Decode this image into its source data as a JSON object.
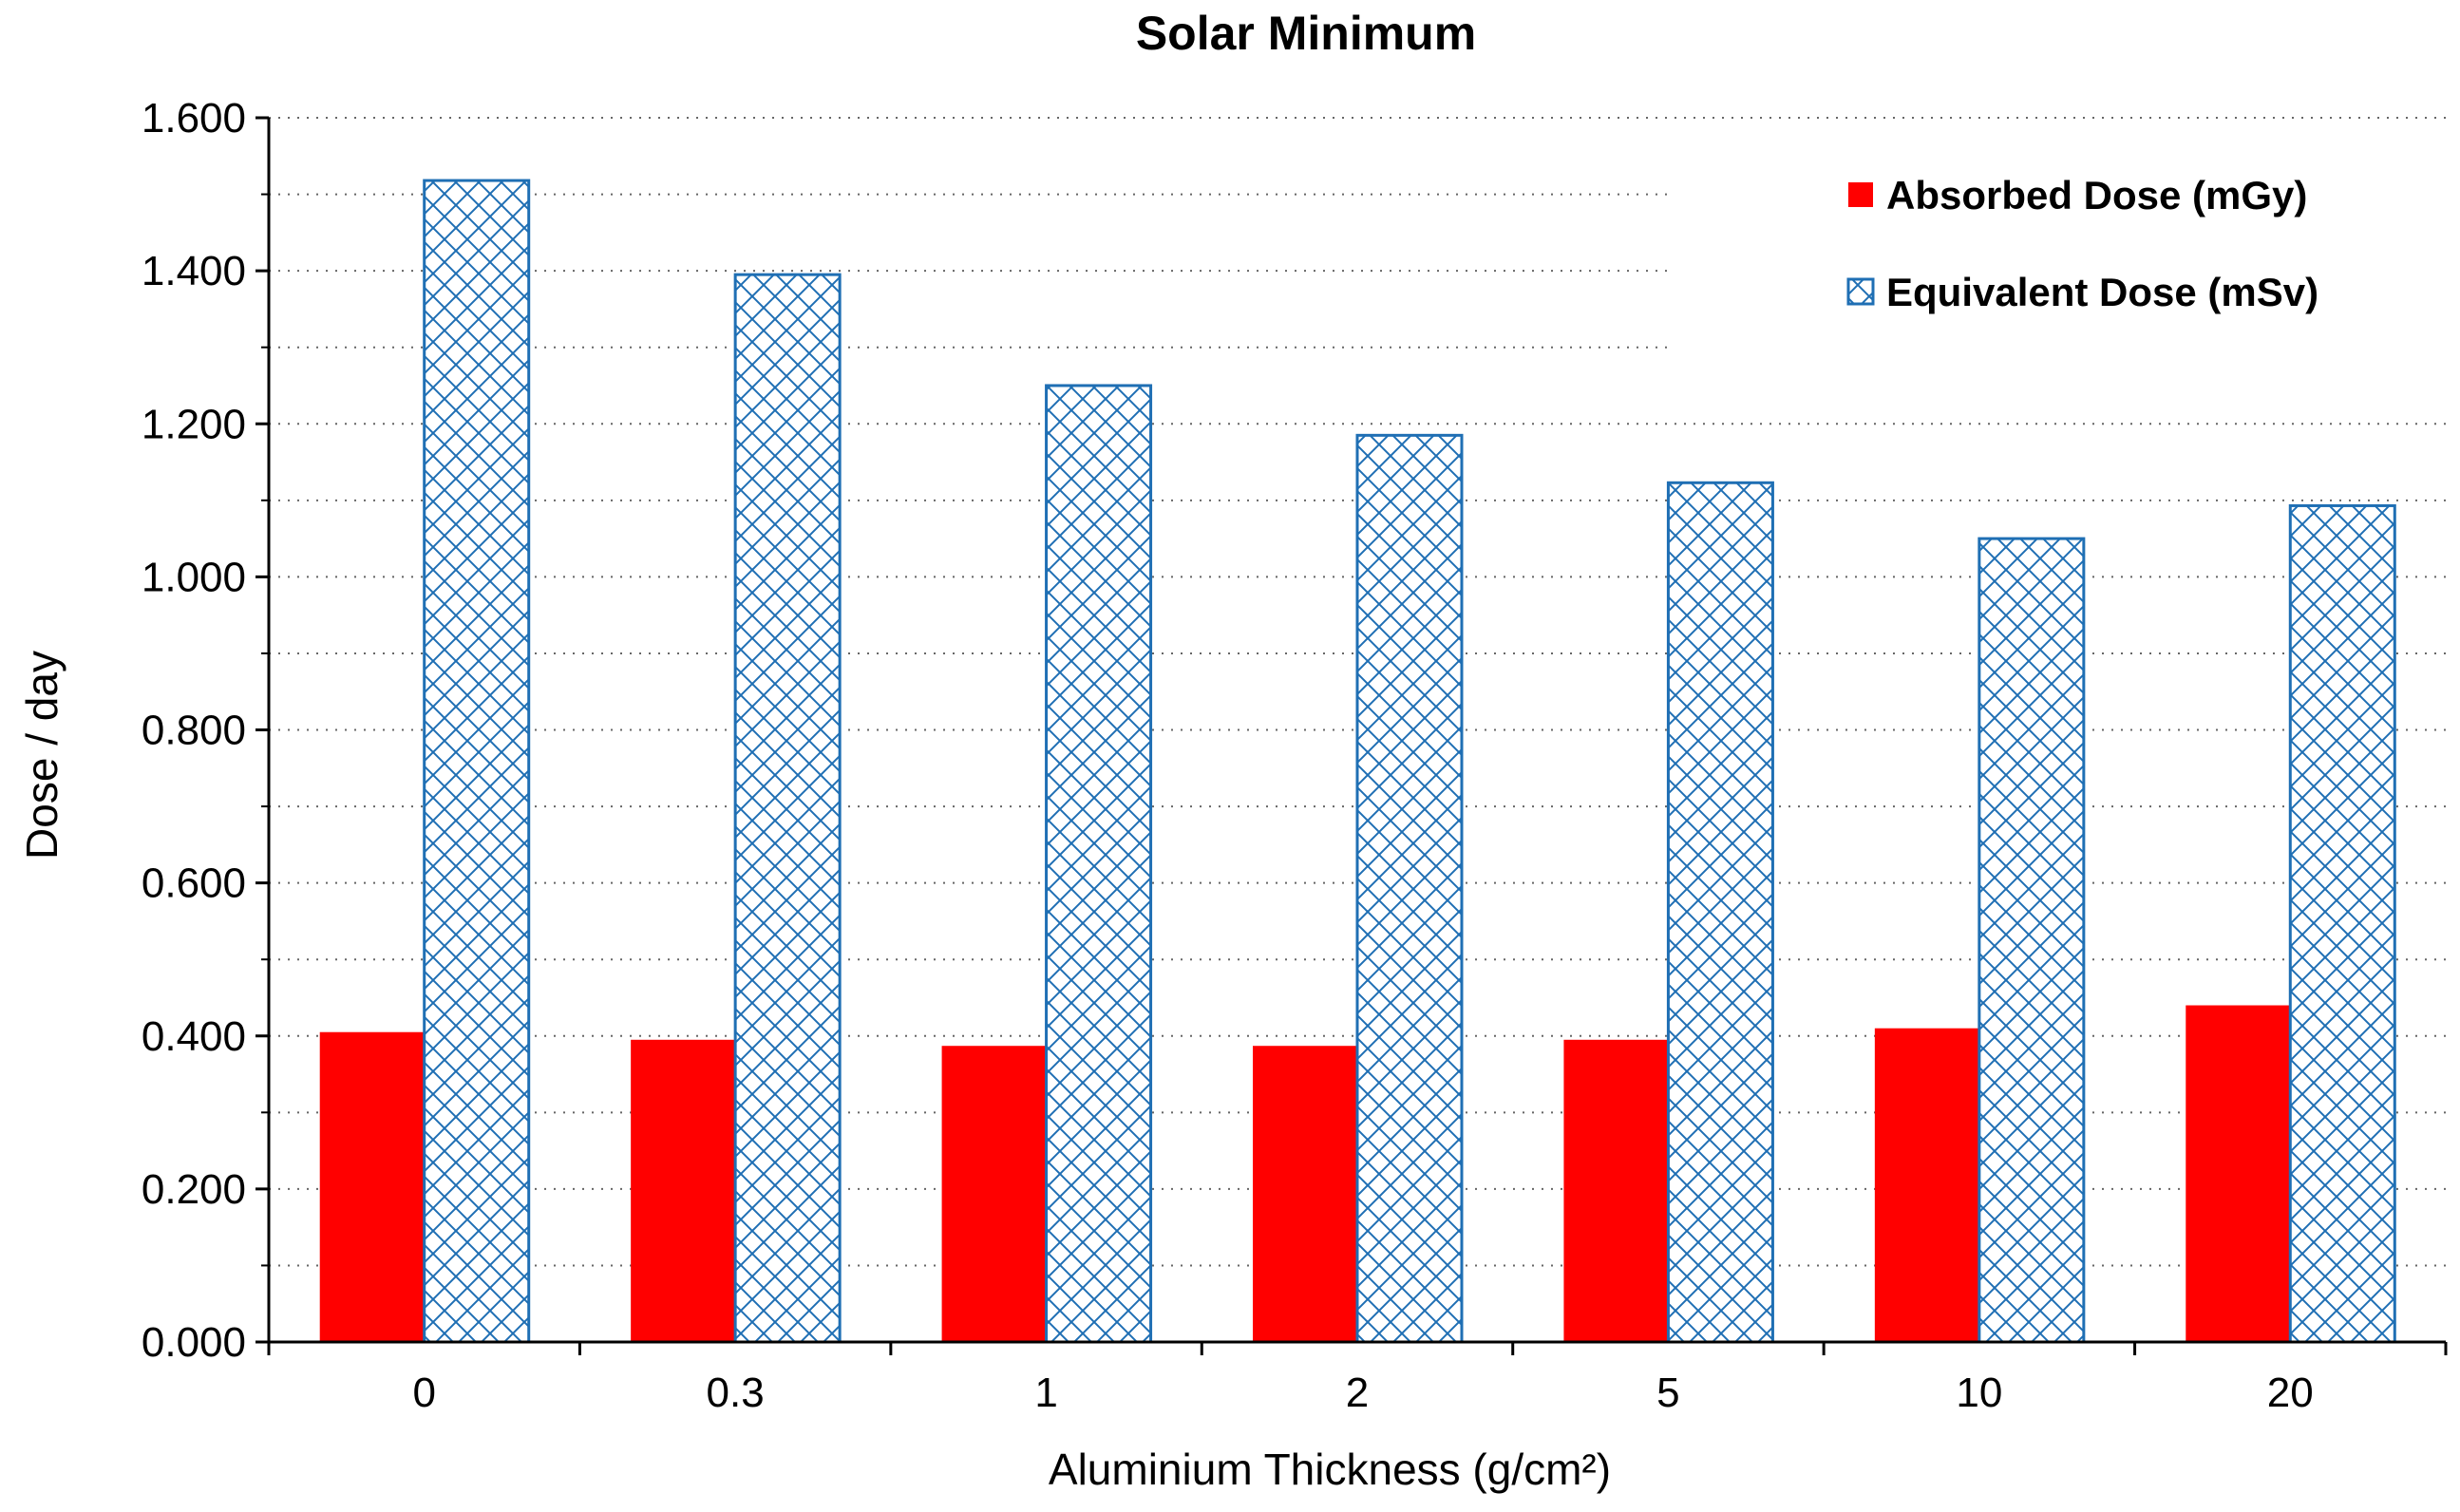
{
  "chart_data": {
    "type": "bar",
    "title": "Solar Minimum",
    "xlabel": "Aluminium Thickness (g/cm²)",
    "ylabel": "Dose / day",
    "categories": [
      "0",
      "0.3",
      "1",
      "2",
      "5",
      "10",
      "20"
    ],
    "series": [
      {
        "name": "Absorbed Dose (mGy)",
        "values": [
          0.405,
          0.395,
          0.387,
          0.387,
          0.395,
          0.41,
          0.44
        ],
        "color": "#ff0000",
        "pattern": "solid"
      },
      {
        "name": "Equivalent Dose (mSv)",
        "values": [
          1.518,
          1.395,
          1.25,
          1.185,
          1.123,
          1.05,
          1.093
        ],
        "color": "#1f6fb4",
        "pattern": "crosshatch"
      }
    ],
    "ylim": [
      0,
      1.6
    ],
    "yticks": [
      "0.000",
      "0.200",
      "0.400",
      "0.600",
      "0.800",
      "1.000",
      "1.200",
      "1.400",
      "1.600"
    ],
    "grid": "dotted",
    "legend": "top-right"
  }
}
